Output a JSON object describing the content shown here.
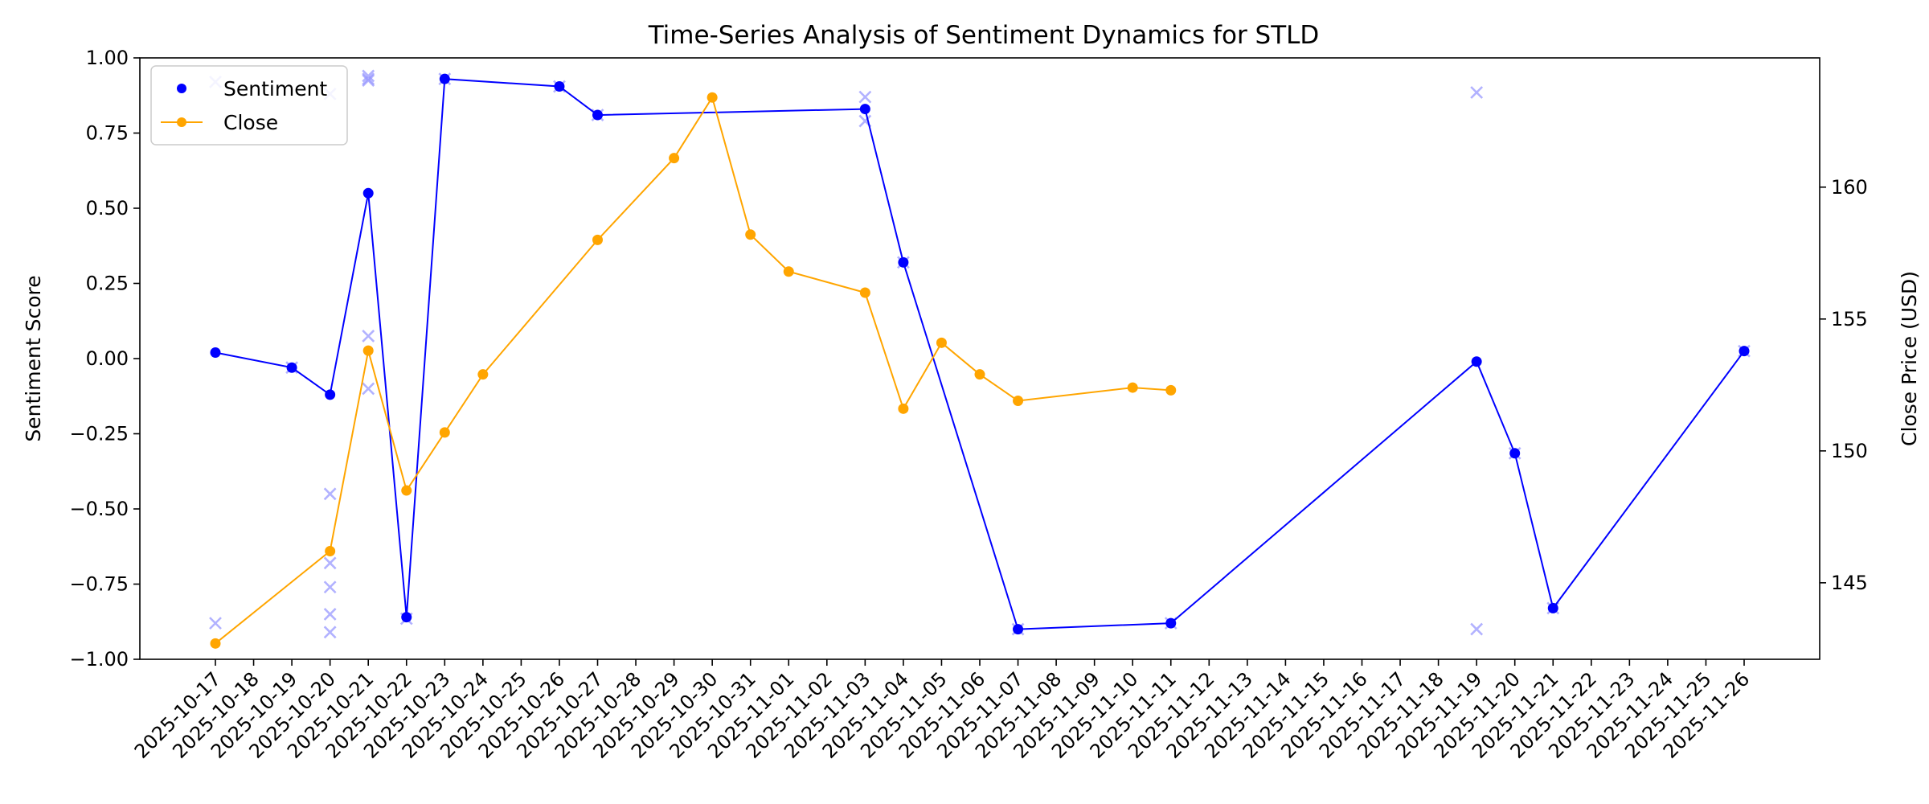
{
  "chart_data": {
    "type": "line",
    "title": "Time-Series Analysis of Sentiment Dynamics for STLD",
    "ylabel": "Sentiment Score",
    "y2label": "Close Price (USD)",
    "xlabel": "",
    "ylim": [
      -1.0,
      1.0
    ],
    "y2lim": [
      142.1,
      164.9
    ],
    "y_ticks": [
      -1.0,
      -0.75,
      -0.5,
      -0.25,
      0.0,
      0.25,
      0.5,
      0.75,
      1.0
    ],
    "y_tick_labels": [
      "−1.00",
      "−0.75",
      "−0.50",
      "−0.25",
      "0.00",
      "0.25",
      "0.50",
      "0.75",
      "1.00"
    ],
    "y2_ticks": [
      145,
      150,
      155,
      160
    ],
    "y2_tick_labels": [
      "145",
      "150",
      "155",
      "160"
    ],
    "x_dates": [
      "2025-10-17",
      "2025-10-18",
      "2025-10-19",
      "2025-10-20",
      "2025-10-21",
      "2025-10-22",
      "2025-10-23",
      "2025-10-24",
      "2025-10-25",
      "2025-10-26",
      "2025-10-27",
      "2025-10-28",
      "2025-10-29",
      "2025-10-30",
      "2025-10-31",
      "2025-11-01",
      "2025-11-02",
      "2025-11-03",
      "2025-11-04",
      "2025-11-05",
      "2025-11-06",
      "2025-11-07",
      "2025-11-08",
      "2025-11-09",
      "2025-11-10",
      "2025-11-11",
      "2025-11-12",
      "2025-11-13",
      "2025-11-14",
      "2025-11-15",
      "2025-11-16",
      "2025-11-17",
      "2025-11-18",
      "2025-11-19",
      "2025-11-20",
      "2025-11-21",
      "2025-11-22",
      "2025-11-23",
      "2025-11-24",
      "2025-11-25",
      "2025-11-26"
    ],
    "legend_placement": "upper-left",
    "grid": false,
    "series": [
      {
        "name": "Sentiment",
        "axis": "left",
        "color": "#0000ff",
        "points": [
          {
            "x": "2025-10-17",
            "y": 0.02
          },
          {
            "x": "2025-10-19",
            "y": -0.03
          },
          {
            "x": "2025-10-20",
            "y": -0.12
          },
          {
            "x": "2025-10-21",
            "y": 0.55
          },
          {
            "x": "2025-10-22",
            "y": -0.86
          },
          {
            "x": "2025-10-23",
            "y": 0.93
          },
          {
            "x": "2025-10-26",
            "y": 0.905
          },
          {
            "x": "2025-10-27",
            "y": 0.81
          },
          {
            "x": "2025-11-03",
            "y": 0.83
          },
          {
            "x": "2025-11-04",
            "y": 0.32
          },
          {
            "x": "2025-11-07",
            "y": -0.9
          },
          {
            "x": "2025-11-11",
            "y": -0.88
          },
          {
            "x": "2025-11-19",
            "y": -0.01
          },
          {
            "x": "2025-11-20",
            "y": -0.315
          },
          {
            "x": "2025-11-21",
            "y": -0.83
          },
          {
            "x": "2025-11-26",
            "y": 0.025
          }
        ]
      },
      {
        "name": "Close",
        "axis": "right",
        "color": "#ffa500",
        "points": [
          {
            "x": "2025-10-17",
            "y": 142.7
          },
          {
            "x": "2025-10-20",
            "y": 146.2
          },
          {
            "x": "2025-10-21",
            "y": 153.8
          },
          {
            "x": "2025-10-22",
            "y": 148.5
          },
          {
            "x": "2025-10-23",
            "y": 150.7
          },
          {
            "x": "2025-10-24",
            "y": 152.9
          },
          {
            "x": "2025-10-27",
            "y": 158.0
          },
          {
            "x": "2025-10-29",
            "y": 161.1
          },
          {
            "x": "2025-10-30",
            "y": 163.4
          },
          {
            "x": "2025-10-31",
            "y": 158.2
          },
          {
            "x": "2025-11-01",
            "y": 156.8
          },
          {
            "x": "2025-11-03",
            "y": 156.0
          },
          {
            "x": "2025-11-04",
            "y": 151.6
          },
          {
            "x": "2025-11-05",
            "y": 154.1
          },
          {
            "x": "2025-11-06",
            "y": 152.9
          },
          {
            "x": "2025-11-07",
            "y": 151.9
          },
          {
            "x": "2025-11-10",
            "y": 152.4
          },
          {
            "x": "2025-11-11",
            "y": 152.3
          }
        ]
      }
    ],
    "raw_points": {
      "color": "#9999ff",
      "marker": "x",
      "points": [
        {
          "x": "2025-10-17",
          "y": 0.92
        },
        {
          "x": "2025-10-17",
          "y": -0.88
        },
        {
          "x": "2025-10-19",
          "y": -0.03
        },
        {
          "x": "2025-10-20",
          "y": 0.88
        },
        {
          "x": "2025-10-20",
          "y": -0.45
        },
        {
          "x": "2025-10-20",
          "y": -0.68
        },
        {
          "x": "2025-10-20",
          "y": -0.76
        },
        {
          "x": "2025-10-20",
          "y": -0.85
        },
        {
          "x": "2025-10-20",
          "y": -0.91
        },
        {
          "x": "2025-10-21",
          "y": 0.94
        },
        {
          "x": "2025-10-21",
          "y": 0.93
        },
        {
          "x": "2025-10-21",
          "y": 0.925
        },
        {
          "x": "2025-10-21",
          "y": 0.075
        },
        {
          "x": "2025-10-21",
          "y": -0.1
        },
        {
          "x": "2025-10-22",
          "y": -0.865
        },
        {
          "x": "2025-10-23",
          "y": 0.93
        },
        {
          "x": "2025-10-26",
          "y": 0.905
        },
        {
          "x": "2025-10-27",
          "y": 0.81
        },
        {
          "x": "2025-11-03",
          "y": 0.87
        },
        {
          "x": "2025-11-03",
          "y": 0.79
        },
        {
          "x": "2025-11-04",
          "y": 0.32
        },
        {
          "x": "2025-11-07",
          "y": -0.9
        },
        {
          "x": "2025-11-11",
          "y": -0.88
        },
        {
          "x": "2025-11-19",
          "y": 0.885
        },
        {
          "x": "2025-11-19",
          "y": -0.9
        },
        {
          "x": "2025-11-20",
          "y": -0.315
        },
        {
          "x": "2025-11-21",
          "y": -0.83
        },
        {
          "x": "2025-11-26",
          "y": 0.025
        }
      ]
    }
  }
}
